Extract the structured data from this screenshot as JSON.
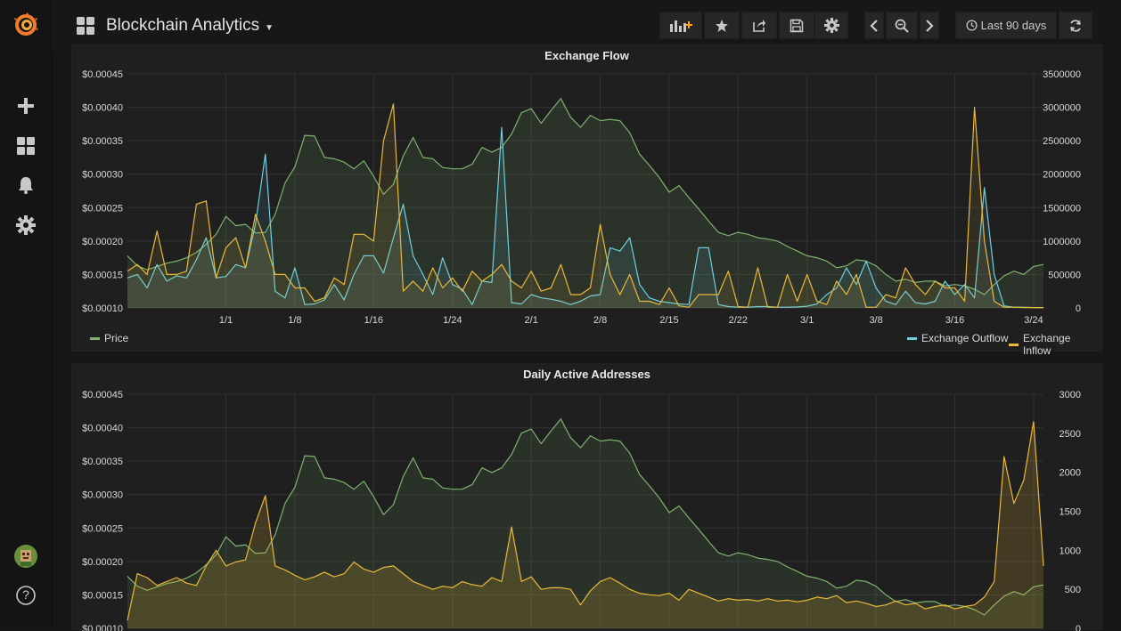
{
  "dashboard": {
    "title": "Blockchain Analytics",
    "time_range_label": "Last 90 days"
  },
  "sidebar": {
    "items": [
      {
        "icon": "grafana-logo-icon"
      },
      {
        "icon": "plus-icon"
      },
      {
        "icon": "dashboards-icon"
      },
      {
        "icon": "bell-icon"
      },
      {
        "icon": "gear-icon"
      },
      {
        "icon": "user-avatar-icon"
      },
      {
        "icon": "help-icon",
        "label": "?"
      }
    ]
  },
  "colors": {
    "price": "#7eb26d",
    "outflow": "#6ed0e0",
    "inflow": "#eab839",
    "addresses": "#eab839"
  },
  "panels": [
    {
      "title": "Exchange Flow",
      "legend_left": [
        {
          "name": "Price",
          "color": "#7eb26d"
        }
      ],
      "legend_right": [
        {
          "name": "Exchange Outflow",
          "color": "#6ed0e0"
        },
        {
          "name": "Exchange Inflow",
          "color": "#eab839"
        }
      ]
    },
    {
      "title": "Daily Active Addresses"
    }
  ],
  "chart_data": [
    {
      "type": "line",
      "title": "Exchange Flow",
      "x": [
        "12/22",
        "12/23",
        "12/24",
        "12/25",
        "12/26",
        "12/27",
        "12/28",
        "12/29",
        "12/30",
        "12/31",
        "1/1",
        "1/2",
        "1/3",
        "1/4",
        "1/5",
        "1/6",
        "1/7",
        "1/8",
        "1/9",
        "1/10",
        "1/11",
        "1/12",
        "1/13",
        "1/14",
        "1/15",
        "1/16",
        "1/17",
        "1/18",
        "1/19",
        "1/20",
        "1/21",
        "1/22",
        "1/23",
        "1/24",
        "1/25",
        "1/26",
        "1/27",
        "1/28",
        "1/29",
        "1/30",
        "1/31",
        "2/1",
        "2/2",
        "2/3",
        "2/4",
        "2/5",
        "2/6",
        "2/7",
        "2/8",
        "2/9",
        "2/10",
        "2/11",
        "2/12",
        "2/13",
        "2/14",
        "2/15",
        "2/16",
        "2/17",
        "2/18",
        "2/19",
        "2/20",
        "2/21",
        "2/22",
        "2/23",
        "2/24",
        "2/25",
        "2/26",
        "2/27",
        "2/28",
        "3/1",
        "3/2",
        "3/3",
        "3/4",
        "3/5",
        "3/6",
        "3/7",
        "3/8",
        "3/9",
        "3/10",
        "3/11",
        "3/12",
        "3/13",
        "3/14",
        "3/15",
        "3/16",
        "3/17",
        "3/18",
        "3/19",
        "3/20",
        "3/21",
        "3/22",
        "3/23",
        "3/24",
        "3/25"
      ],
      "x_ticks": [
        "1/1",
        "1/8",
        "1/16",
        "1/24",
        "2/1",
        "2/8",
        "2/15",
        "2/22",
        "3/1",
        "3/8",
        "3/16",
        "3/24"
      ],
      "y_left": {
        "ticks": [
          "$0.00010",
          "$0.00015",
          "$0.00020",
          "$0.00025",
          "$0.00030",
          "$0.00035",
          "$0.00040",
          "$0.00045"
        ],
        "range": [
          0.0001,
          0.00045
        ]
      },
      "y_right": {
        "ticks": [
          "0",
          "500000",
          "1000000",
          "1500000",
          "2000000",
          "2500000",
          "3000000",
          "3500000"
        ],
        "range": [
          0,
          3500000
        ]
      },
      "series": [
        {
          "name": "Price",
          "axis": "left",
          "color": "#7eb26d",
          "values": [
            0.000178,
            0.000163,
            0.000157,
            0.000162,
            0.000167,
            0.00017,
            0.000175,
            0.000183,
            0.000195,
            0.00021,
            0.000237,
            0.000223,
            0.000225,
            0.000212,
            0.000213,
            0.00024,
            0.000287,
            0.000311,
            0.000358,
            0.000357,
            0.000325,
            0.000323,
            0.000318,
            0.000308,
            0.00032,
            0.000297,
            0.00027,
            0.000285,
            0.000327,
            0.000355,
            0.000325,
            0.000323,
            0.00031,
            0.000308,
            0.000308,
            0.000315,
            0.00034,
            0.000333,
            0.00034,
            0.00036,
            0.000392,
            0.000398,
            0.000376,
            0.000395,
            0.000413,
            0.000385,
            0.00037,
            0.000388,
            0.00038,
            0.000382,
            0.00038,
            0.000362,
            0.00033,
            0.000313,
            0.000295,
            0.000273,
            0.000283,
            0.000265,
            0.000248,
            0.00023,
            0.000213,
            0.000208,
            0.000213,
            0.00021,
            0.000205,
            0.000203,
            0.0002,
            0.000192,
            0.000185,
            0.000178,
            0.000175,
            0.00017,
            0.00016,
            0.000163,
            0.000172,
            0.00017,
            0.000163,
            0.00015,
            0.00014,
            0.000143,
            0.000138,
            0.00014,
            0.00014,
            0.000133,
            0.000135,
            0.000133,
            0.000128,
            0.00012,
            0.000135,
            0.000148,
            0.000155,
            0.00015,
            0.000162,
            0.000165
          ]
        },
        {
          "name": "Exchange Outflow",
          "axis": "right",
          "color": "#6ed0e0",
          "values": [
            450000,
            500000,
            300000,
            650000,
            400000,
            480000,
            450000,
            720000,
            1050000,
            450000,
            470000,
            650000,
            600000,
            1250000,
            2300000,
            250000,
            150000,
            600000,
            50000,
            60000,
            120000,
            350000,
            120000,
            500000,
            780000,
            780000,
            520000,
            1050000,
            1550000,
            780000,
            500000,
            200000,
            750000,
            350000,
            280000,
            50000,
            400000,
            380000,
            2700000,
            80000,
            60000,
            200000,
            150000,
            130000,
            100000,
            50000,
            100000,
            180000,
            200000,
            900000,
            850000,
            1050000,
            350000,
            150000,
            100000,
            80000,
            60000,
            50000,
            900000,
            900000,
            50000,
            20000,
            10000,
            10000,
            20000,
            20000,
            10000,
            10000,
            15000,
            25000,
            60000,
            200000,
            300000,
            600000,
            350000,
            700000,
            300000,
            100000,
            50000,
            250000,
            80000,
            60000,
            100000,
            400000,
            200000,
            350000,
            150000,
            1800000,
            500000,
            30000,
            10000,
            10000,
            5000,
            5000
          ]
        },
        {
          "name": "Exchange Inflow",
          "axis": "right",
          "color": "#eab839",
          "values": [
            550000,
            650000,
            500000,
            1150000,
            500000,
            500000,
            550000,
            1550000,
            1600000,
            450000,
            900000,
            1050000,
            600000,
            1400000,
            1000000,
            500000,
            500000,
            300000,
            300000,
            100000,
            150000,
            450000,
            350000,
            1100000,
            1100000,
            1000000,
            2500000,
            3050000,
            250000,
            400000,
            250000,
            600000,
            300000,
            450000,
            250000,
            550000,
            400000,
            500000,
            650000,
            400000,
            300000,
            550000,
            250000,
            300000,
            650000,
            200000,
            200000,
            300000,
            1250000,
            500000,
            200000,
            500000,
            100000,
            100000,
            50000,
            300000,
            30000,
            10000,
            200000,
            200000,
            200000,
            550000,
            20000,
            10000,
            600000,
            10000,
            10000,
            500000,
            100000,
            500000,
            100000,
            50000,
            400000,
            200000,
            500000,
            10000,
            10000,
            200000,
            150000,
            600000,
            350000,
            200000,
            400000,
            300000,
            300000,
            100000,
            3000000,
            1000000,
            100000,
            10000,
            10000,
            5000,
            5000,
            5000
          ]
        }
      ]
    },
    {
      "type": "area",
      "title": "Daily Active Addresses",
      "y_left": {
        "ticks": [
          "$0.00010",
          "$0.00015",
          "$0.00020",
          "$0.00025",
          "$0.00030",
          "$0.00035",
          "$0.00040",
          "$0.00045"
        ],
        "range": [
          0.0001,
          0.00045
        ]
      },
      "y_right": {
        "ticks": [
          "0",
          "500",
          "1000",
          "1500",
          "2000",
          "2500",
          "3000"
        ],
        "range": [
          0,
          3000
        ]
      },
      "series": [
        {
          "name": "Price",
          "axis": "left",
          "color": "#7eb26d",
          "ref": "same as Exchange Flow price"
        },
        {
          "name": "Daily Active Addresses",
          "axis": "right",
          "color": "#eab839",
          "values": [
            100,
            700,
            650,
            550,
            600,
            650,
            580,
            550,
            800,
            1000,
            800,
            850,
            880,
            1350,
            1700,
            800,
            750,
            680,
            620,
            660,
            720,
            660,
            700,
            850,
            760,
            720,
            780,
            800,
            700,
            600,
            550,
            500,
            540,
            520,
            600,
            560,
            540,
            650,
            600,
            1300,
            600,
            660,
            500,
            520,
            520,
            500,
            300,
            480,
            600,
            650,
            580,
            500,
            450,
            430,
            420,
            450,
            360,
            500,
            450,
            400,
            350,
            380,
            360,
            370,
            350,
            380,
            350,
            360,
            340,
            360,
            400,
            380,
            420,
            330,
            350,
            320,
            280,
            300,
            350,
            300,
            320,
            250,
            280,
            300,
            250,
            280,
            300,
            400,
            600,
            2200,
            1600,
            1900,
            2650,
            800
          ]
        }
      ]
    }
  ]
}
